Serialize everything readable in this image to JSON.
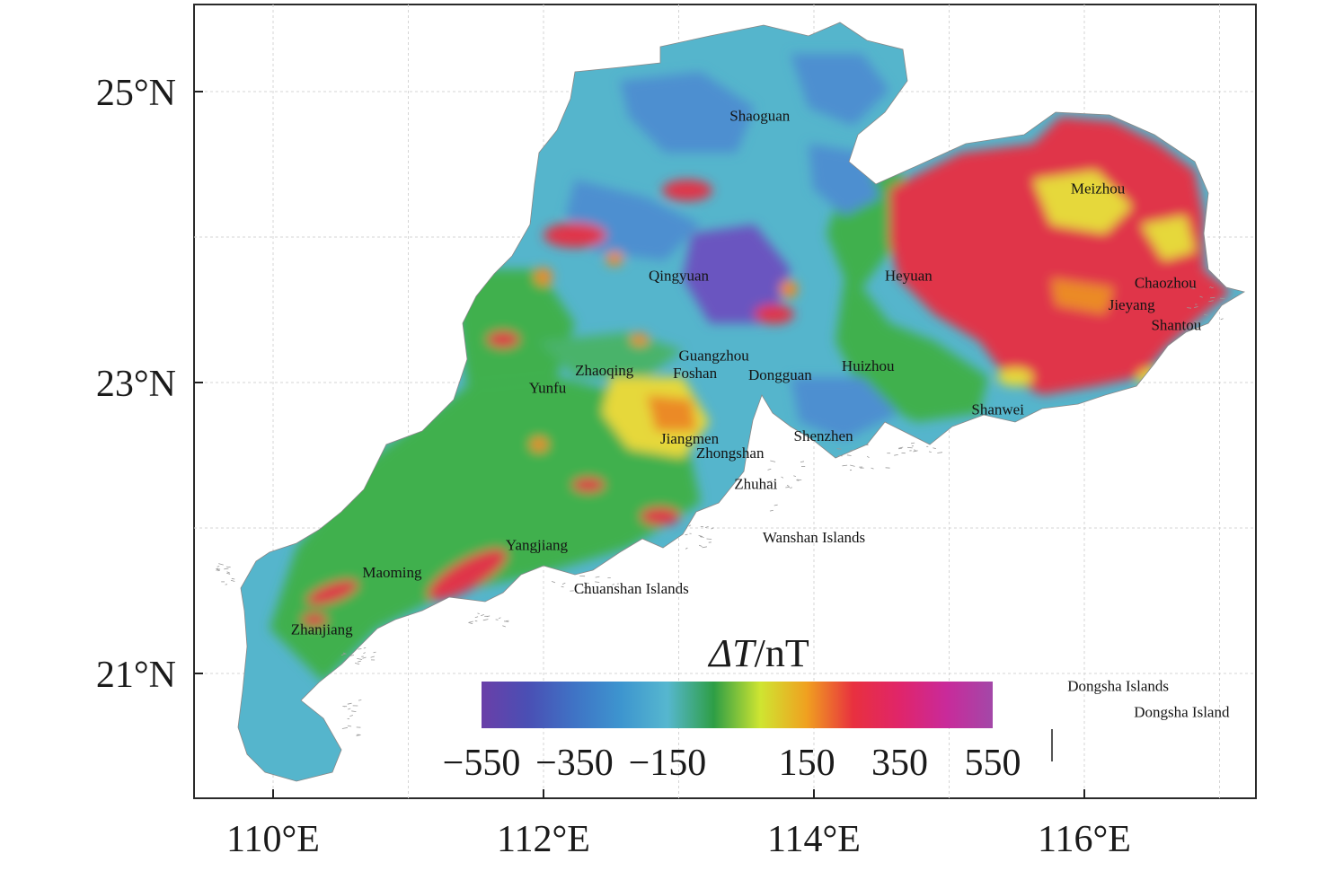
{
  "map": {
    "extent": {
      "lon_min": 109.4,
      "lon_max": 117.3,
      "lat_min": 20.2,
      "lat_max": 25.6
    },
    "x_ticks": [
      {
        "value": 110,
        "label": "110°E"
      },
      {
        "value": 112,
        "label": "112°E"
      },
      {
        "value": 114,
        "label": "114°E"
      },
      {
        "value": 116,
        "label": "116°E"
      }
    ],
    "y_ticks": [
      {
        "value": 25,
        "label": "25°N"
      },
      {
        "value": 23,
        "label": "23°N"
      },
      {
        "value": 21,
        "label": "21°N"
      }
    ],
    "grid": true,
    "places": [
      {
        "name": "Shaoguan",
        "lon": 113.6,
        "lat": 24.8
      },
      {
        "name": "Meizhou",
        "lon": 116.1,
        "lat": 24.3
      },
      {
        "name": "Qingyuan",
        "lon": 113.0,
        "lat": 23.7
      },
      {
        "name": "Heyuan",
        "lon": 114.7,
        "lat": 23.7
      },
      {
        "name": "Chaozhou",
        "lon": 116.6,
        "lat": 23.65
      },
      {
        "name": "Jieyang",
        "lon": 116.35,
        "lat": 23.5
      },
      {
        "name": "Shantou",
        "lon": 116.68,
        "lat": 23.36
      },
      {
        "name": "Guangzhou",
        "lon": 113.26,
        "lat": 23.15
      },
      {
        "name": "Zhaoqing",
        "lon": 112.45,
        "lat": 23.05
      },
      {
        "name": "Foshan",
        "lon": 113.12,
        "lat": 23.03
      },
      {
        "name": "Dongguan",
        "lon": 113.75,
        "lat": 23.02
      },
      {
        "name": "Huizhou",
        "lon": 114.4,
        "lat": 23.08
      },
      {
        "name": "Yunfu",
        "lon": 112.03,
        "lat": 22.93
      },
      {
        "name": "Shanwei",
        "lon": 115.36,
        "lat": 22.78
      },
      {
        "name": "Jiangmen",
        "lon": 113.08,
        "lat": 22.58
      },
      {
        "name": "Shenzhen",
        "lon": 114.07,
        "lat": 22.6
      },
      {
        "name": "Zhongshan",
        "lon": 113.38,
        "lat": 22.48
      },
      {
        "name": "Zhuhai",
        "lon": 113.57,
        "lat": 22.27
      },
      {
        "name": "Wanshan Islands",
        "lon": 114.0,
        "lat": 21.9
      },
      {
        "name": "Yangjiang",
        "lon": 111.95,
        "lat": 21.85
      },
      {
        "name": "Maoming",
        "lon": 110.88,
        "lat": 21.66
      },
      {
        "name": "Chuanshan Islands",
        "lon": 112.65,
        "lat": 21.55
      },
      {
        "name": "Zhanjiang",
        "lon": 110.36,
        "lat": 21.27
      },
      {
        "name": "Dongsha Islands",
        "lon": 116.25,
        "lat": 20.88
      },
      {
        "name": "Dongsha Island",
        "lon": 116.72,
        "lat": 20.7
      }
    ]
  },
  "colorbar": {
    "title_symbol": "ΔT",
    "title_unit": "/nT",
    "range": [
      -550,
      550
    ],
    "ticks": [
      {
        "value": -550,
        "label": "−550"
      },
      {
        "value": -350,
        "label": "−350"
      },
      {
        "value": -150,
        "label": "−150"
      },
      {
        "value": 150,
        "label": "150"
      },
      {
        "value": 350,
        "label": "350"
      },
      {
        "value": 550,
        "label": "550"
      }
    ],
    "colors": [
      "#6a3fa8",
      "#4a4fb4",
      "#3f73c5",
      "#3d95cf",
      "#56b7cf",
      "#2e9e45",
      "#cfe531",
      "#f0a020",
      "#e8303f",
      "#e0256a",
      "#c92a9a",
      "#a348a8"
    ]
  },
  "field_colors": {
    "low_deep": "#6a55c0",
    "low": "#4d8fd0",
    "cyan": "#55b5cc",
    "green": "#3fb04e",
    "yellow": "#e6d83a",
    "orange": "#eb8a28",
    "red": "#e0344a"
  }
}
